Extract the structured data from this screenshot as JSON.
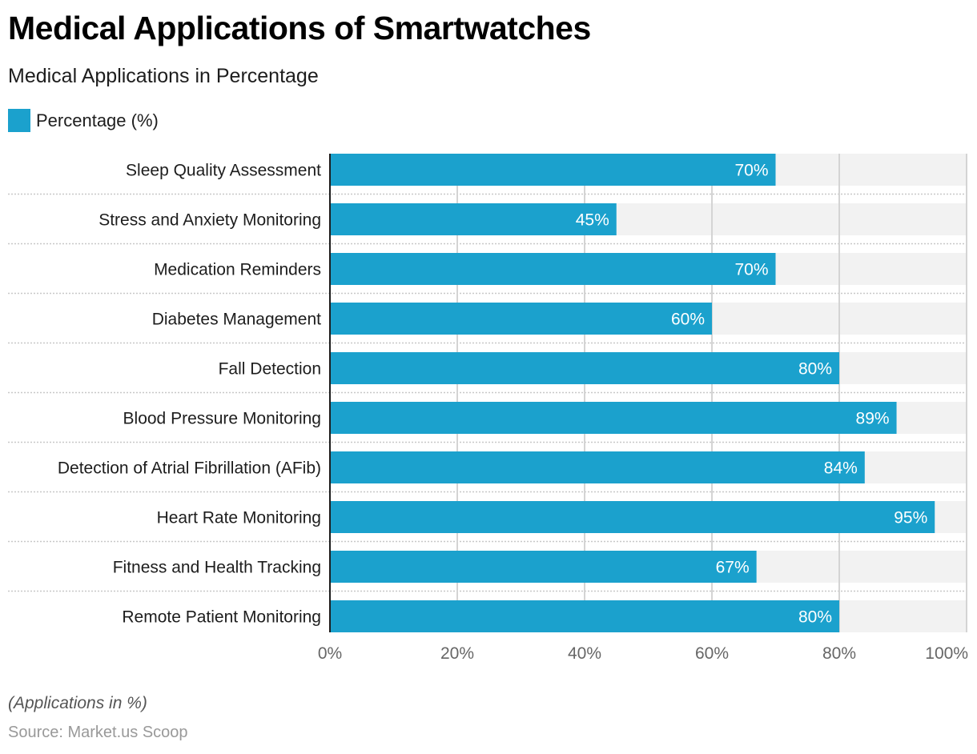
{
  "title": "Medical Applications of Smartwatches",
  "subtitle": "Medical Applications in Percentage",
  "note": "(Applications in %)",
  "source": "Source: Market.us Scoop",
  "colors": {
    "bar": "#1ba1cd",
    "track": "#f2f2f2",
    "grid": "#d4d4d4",
    "axis": "#1d1d1d"
  },
  "chart_data": {
    "type": "bar",
    "orientation": "horizontal",
    "title": "Medical Applications of Smartwatches",
    "subtitle": "Medical Applications in Percentage",
    "xlabel": "",
    "ylabel": "",
    "xlim": [
      0,
      100
    ],
    "ticks": [
      0,
      20,
      40,
      60,
      80,
      100
    ],
    "tick_labels": [
      "0%",
      "20%",
      "40%",
      "60%",
      "80%",
      "100%"
    ],
    "grid": true,
    "legend": {
      "position": "top-left",
      "entries": [
        "Percentage (%)"
      ]
    },
    "categories": [
      "Sleep Quality Assessment",
      "Stress and Anxiety Monitoring",
      "Medication Reminders",
      "Diabetes Management",
      "Fall Detection",
      "Blood Pressure Monitoring",
      "Detection of Atrial Fibrillation (AFib)",
      "Heart Rate Monitoring",
      "Fitness and Health Tracking",
      "Remote Patient Monitoring"
    ],
    "series": [
      {
        "name": "Percentage (%)",
        "values": [
          70,
          45,
          70,
          60,
          80,
          89,
          84,
          95,
          67,
          80
        ],
        "labels": [
          "70%",
          "45%",
          "70%",
          "60%",
          "80%",
          "89%",
          "84%",
          "95%",
          "67%",
          "80%"
        ]
      }
    ]
  }
}
